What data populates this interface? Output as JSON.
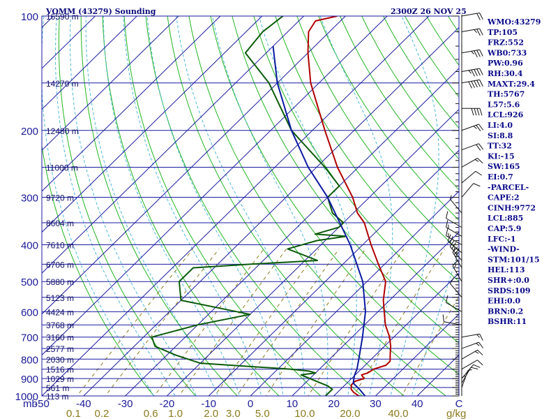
{
  "chart_data": {
    "type": "line",
    "diagram": "skew-T log-P",
    "title": "VOMM (43279) Sounding",
    "valid_time": "2300Z 26 NOV 25",
    "pressure_unit_label": "mb",
    "mixing_ratio_unit_label": "g/kg",
    "pressure_range_mb": [
      1000,
      100
    ],
    "temperature_range_c": [
      -50,
      50
    ],
    "pressure_ticks": [
      {
        "value": 100,
        "label": "100"
      },
      {
        "value": 200,
        "label": "200"
      },
      {
        "value": 300,
        "label": "300"
      },
      {
        "value": 400,
        "label": "400"
      },
      {
        "value": 500,
        "label": "500"
      },
      {
        "value": 600,
        "label": "600"
      },
      {
        "value": 700,
        "label": "700"
      },
      {
        "value": 800,
        "label": "800"
      },
      {
        "value": 900,
        "label": "900"
      },
      {
        "value": 1000,
        "label": "1000"
      }
    ],
    "temperature_ticks": [
      {
        "value": -50,
        "label": "-50"
      },
      {
        "value": -40,
        "label": "-40"
      },
      {
        "value": -30,
        "label": "-30"
      },
      {
        "value": -20,
        "label": "-20"
      },
      {
        "value": -10,
        "label": "-10"
      },
      {
        "value": 0,
        "label": "0"
      },
      {
        "value": 10,
        "label": "10"
      },
      {
        "value": 20,
        "label": "20"
      },
      {
        "value": 30,
        "label": "30"
      },
      {
        "value": 40,
        "label": "40"
      },
      {
        "value": 50,
        "label": "C"
      }
    ],
    "mixing_ratio_ticks": [
      {
        "value": 0.1,
        "label": "0.1"
      },
      {
        "value": 0.2,
        "label": "0.2"
      },
      {
        "value": 0.6,
        "label": "0.6"
      },
      {
        "value": 1.0,
        "label": "1.0"
      },
      {
        "value": 2.0,
        "label": "2.0"
      },
      {
        "value": 3.0,
        "label": "3.0"
      },
      {
        "value": 5.0,
        "label": "5.0"
      },
      {
        "value": 10.0,
        "label": "10.0"
      },
      {
        "value": 20.0,
        "label": "20.0"
      },
      {
        "value": 40.0,
        "label": "40.0"
      }
    ],
    "height_labels": [
      {
        "p": 100,
        "label": "16590 m"
      },
      {
        "p": 150,
        "label": "14270 m"
      },
      {
        "p": 200,
        "label": "12480 m"
      },
      {
        "p": 250,
        "label": "11000 m"
      },
      {
        "p": 300,
        "label": "9720 m"
      },
      {
        "p": 350,
        "label": "8604 m"
      },
      {
        "p": 400,
        "label": "7610 m"
      },
      {
        "p": 450,
        "label": "6706 m"
      },
      {
        "p": 500,
        "label": "5880 m"
      },
      {
        "p": 550,
        "label": "5123 m"
      },
      {
        "p": 600,
        "label": "4424 m"
      },
      {
        "p": 650,
        "label": "3768 m"
      },
      {
        "p": 700,
        "label": "3160 m"
      },
      {
        "p": 750,
        "label": "2577 m"
      },
      {
        "p": 800,
        "label": "2030 m"
      },
      {
        "p": 850,
        "label": "1516 m"
      },
      {
        "p": 900,
        "label": "1029 m"
      },
      {
        "p": 950,
        "label": "561 m"
      },
      {
        "p": 1000,
        "label": "113 m"
      }
    ],
    "series": [
      {
        "name": "Temperature",
        "color": "#b00000",
        "points": [
          {
            "p": 1007,
            "t": 28.0
          },
          {
            "p": 1000,
            "t": 26.0
          },
          {
            "p": 980,
            "t": 24.0
          },
          {
            "p": 960,
            "t": 22.5
          },
          {
            "p": 935,
            "t": 21.5
          },
          {
            "p": 915,
            "t": 21.5
          },
          {
            "p": 900,
            "t": 23.0
          },
          {
            "p": 880,
            "t": 21.5
          },
          {
            "p": 870,
            "t": 22.5
          },
          {
            "p": 850,
            "t": 23.0
          },
          {
            "p": 830,
            "t": 25.0
          },
          {
            "p": 810,
            "t": 25.0
          },
          {
            "p": 780,
            "t": 23.5
          },
          {
            "p": 740,
            "t": 21.5
          },
          {
            "p": 700,
            "t": 19.0
          },
          {
            "p": 650,
            "t": 15.0
          },
          {
            "p": 600,
            "t": 11.5
          },
          {
            "p": 560,
            "t": 8.5
          },
          {
            "p": 500,
            "t": 4.5
          },
          {
            "p": 450,
            "t": -1.5
          },
          {
            "p": 400,
            "t": -8.0
          },
          {
            "p": 350,
            "t": -15.0
          },
          {
            "p": 330,
            "t": -19.0
          },
          {
            "p": 300,
            "t": -24.0
          },
          {
            "p": 250,
            "t": -35.0
          },
          {
            "p": 200,
            "t": -47.0
          },
          {
            "p": 150,
            "t": -62.0
          },
          {
            "p": 125,
            "t": -70.0
          },
          {
            "p": 110,
            "t": -75.0
          },
          {
            "p": 103,
            "t": -76.0
          },
          {
            "p": 100,
            "t": -72.0
          }
        ]
      },
      {
        "name": "Dew point",
        "color": "#0a5a0a",
        "points": [
          {
            "p": 1000,
            "t": 18.0
          },
          {
            "p": 960,
            "t": 18.0
          },
          {
            "p": 940,
            "t": 16.0
          },
          {
            "p": 920,
            "t": 13.0
          },
          {
            "p": 900,
            "t": 10.0
          },
          {
            "p": 880,
            "t": 7.0
          },
          {
            "p": 870,
            "t": 10.0
          },
          {
            "p": 860,
            "t": 8.0
          },
          {
            "p": 850,
            "t": 3.0
          },
          {
            "p": 820,
            "t": -20.0
          },
          {
            "p": 780,
            "t": -28.0
          },
          {
            "p": 740,
            "t": -35.0
          },
          {
            "p": 700,
            "t": -38.0
          },
          {
            "p": 650,
            "t": -30.0
          },
          {
            "p": 610,
            "t": -20.0
          },
          {
            "p": 560,
            "t": -40.0
          },
          {
            "p": 500,
            "t": -45.0
          },
          {
            "p": 460,
            "t": -45.0
          },
          {
            "p": 450,
            "t": -32.0
          },
          {
            "p": 440,
            "t": -17.0
          },
          {
            "p": 410,
            "t": -27.0
          },
          {
            "p": 390,
            "t": -22.0
          },
          {
            "p": 380,
            "t": -16.0
          },
          {
            "p": 375,
            "t": -24.0
          },
          {
            "p": 360,
            "t": -20.0
          },
          {
            "p": 350,
            "t": -20.0
          },
          {
            "p": 330,
            "t": -25.0
          },
          {
            "p": 300,
            "t": -30.0
          },
          {
            "p": 280,
            "t": -30.0
          },
          {
            "p": 250,
            "t": -38.0
          },
          {
            "p": 200,
            "t": -55.0
          },
          {
            "p": 150,
            "t": -72.0
          },
          {
            "p": 125,
            "t": -85.0
          },
          {
            "p": 110,
            "t": -86.0
          },
          {
            "p": 100,
            "t": -85.0
          }
        ]
      },
      {
        "name": "Parcel",
        "color": "#0a1aa0",
        "points": [
          {
            "p": 1007,
            "t": 28.0
          },
          {
            "p": 960,
            "t": 24.5
          },
          {
            "p": 925,
            "t": 21.5
          },
          {
            "p": 885,
            "t": 20.0
          },
          {
            "p": 850,
            "t": 19.0
          },
          {
            "p": 800,
            "t": 17.0
          },
          {
            "p": 700,
            "t": 12.5
          },
          {
            "p": 600,
            "t": 7.0
          },
          {
            "p": 500,
            "t": -1.0
          },
          {
            "p": 400,
            "t": -13.0
          },
          {
            "p": 300,
            "t": -30.0
          },
          {
            "p": 250,
            "t": -42.0
          },
          {
            "p": 200,
            "t": -55.0
          },
          {
            "p": 150,
            "t": -70.0
          },
          {
            "p": 120,
            "t": -80.0
          }
        ]
      }
    ],
    "wind_barbs": [
      {
        "p": 100,
        "dir": 80,
        "kt": 20
      },
      {
        "p": 110,
        "dir": 80,
        "kt": 25
      },
      {
        "p": 125,
        "dir": 80,
        "kt": 35
      },
      {
        "p": 140,
        "dir": 80,
        "kt": 45
      },
      {
        "p": 150,
        "dir": 80,
        "kt": 50
      },
      {
        "p": 175,
        "dir": 90,
        "kt": 40
      },
      {
        "p": 200,
        "dir": 70,
        "kt": 25
      },
      {
        "p": 225,
        "dir": 70,
        "kt": 20
      },
      {
        "p": 250,
        "dir": 60,
        "kt": 15
      },
      {
        "p": 275,
        "dir": 50,
        "kt": 10
      },
      {
        "p": 300,
        "dir": 40,
        "kt": 10
      },
      {
        "p": 330,
        "dir": 320,
        "kt": 5
      },
      {
        "p": 360,
        "dir": 300,
        "kt": 10
      },
      {
        "p": 380,
        "dir": 300,
        "kt": 15
      },
      {
        "p": 400,
        "dir": 300,
        "kt": 15
      },
      {
        "p": 420,
        "dir": 310,
        "kt": 20
      },
      {
        "p": 440,
        "dir": 320,
        "kt": 25
      },
      {
        "p": 460,
        "dir": 330,
        "kt": 25
      },
      {
        "p": 500,
        "dir": 330,
        "kt": 15
      },
      {
        "p": 550,
        "dir": 320,
        "kt": 10
      },
      {
        "p": 600,
        "dir": 300,
        "kt": 10
      },
      {
        "p": 650,
        "dir": 280,
        "kt": 10
      },
      {
        "p": 700,
        "dir": 80,
        "kt": 15
      },
      {
        "p": 750,
        "dir": 70,
        "kt": 15
      },
      {
        "p": 800,
        "dir": 60,
        "kt": 15
      },
      {
        "p": 850,
        "dir": 60,
        "kt": 10
      },
      {
        "p": 900,
        "dir": 40,
        "kt": 10
      },
      {
        "p": 925,
        "dir": 30,
        "kt": 10
      },
      {
        "p": 950,
        "dir": 20,
        "kt": 5
      },
      {
        "p": 1000,
        "dir": 360,
        "kt": 5
      }
    ],
    "indices": [
      "WMO:43279",
      "TP:105",
      "FRZ:552",
      "WB0:733",
      "PW:0.96",
      "RH:30.4",
      "MAXT:29.4",
      "TH:5767",
      "L57:5.6",
      "LCL:926",
      "LI:4.0",
      "SI:8.8",
      "TT:32",
      "KI:-15",
      "SW:165",
      "EI:0.7",
      "-PARCEL-",
      "CAPE:2",
      "CINH:9772",
      "LCL:885",
      "CAP:5.9",
      "LFC:-1",
      "-WIND-",
      "STM:101/15",
      "HEL:113",
      "SHR+:0.0",
      "SRDS:109",
      "EHI:0.0",
      "BRN:0.2",
      "BSHR:11"
    ]
  },
  "colors": {
    "isobar": "#1a1aa0",
    "isotherm": "#1a1aa0",
    "dry_adiabat": "#22b422",
    "moist_adiabat": "#4db8d8",
    "mixing_ratio": "#8a7a1e"
  }
}
